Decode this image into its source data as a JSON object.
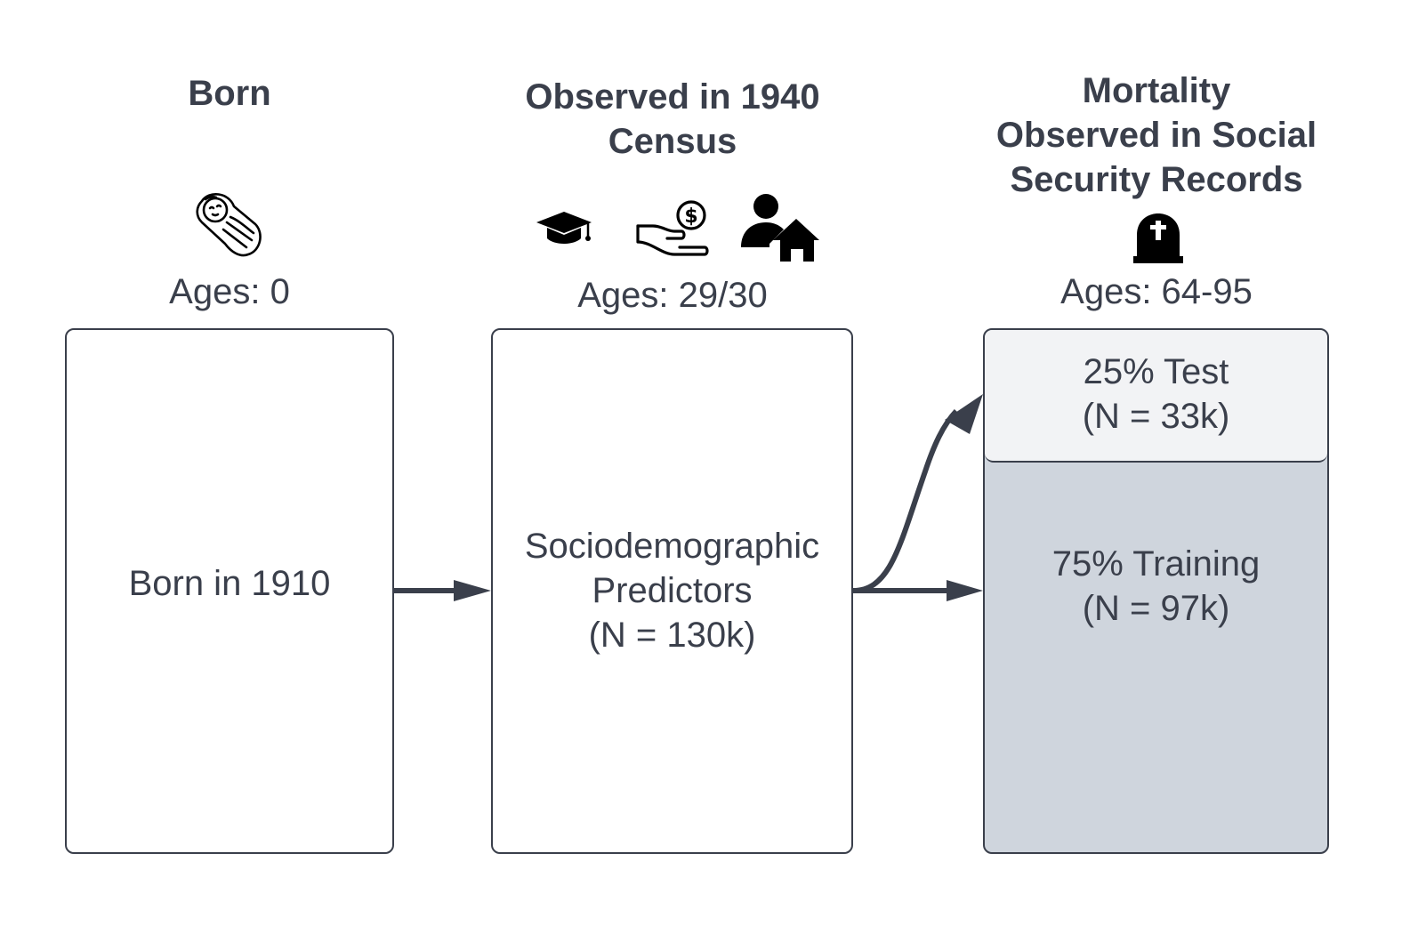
{
  "stages": {
    "born": {
      "title": "Born",
      "ages": "Ages: 0",
      "box_text": "Born in 1910"
    },
    "census": {
      "title_line1": "Observed in 1940",
      "title_line2": "Census",
      "ages": "Ages: 29/30",
      "box_line1": "Sociodemographic",
      "box_line2": "Predictors",
      "box_line3": "(N = 130k)"
    },
    "mortality": {
      "title_line1": "Mortality",
      "title_line2": "Observed in Social",
      "title_line3": "Security Records",
      "ages": "Ages: 64-95",
      "test_line1": "25% Test",
      "test_line2": "(N = 33k)",
      "train_line1": "75% Training",
      "train_line2": "(N = 97k)"
    }
  },
  "icons": {
    "born": "baby-icon",
    "census": [
      "graduation-cap-icon",
      "hand-money-icon",
      "person-house-icon"
    ],
    "mortality": "tombstone-icon"
  },
  "colors": {
    "ink": "#3a3f4b",
    "test_fill": "#f2f3f5",
    "train_fill": "#cfd5dd",
    "box_fill": "#ffffff"
  }
}
